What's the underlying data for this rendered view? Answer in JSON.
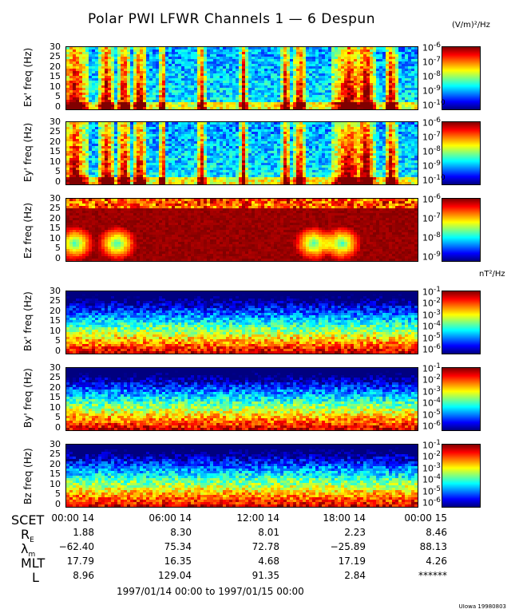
{
  "header": {
    "title": "Polar PWI LFWR Channels 1 — 6 Despun",
    "unit_e": "(V/m)²/Hz",
    "unit_b": "nT²/Hz"
  },
  "chart_data": {
    "type": "heatmap",
    "y_ticks": [
      "30",
      "25",
      "20",
      "15",
      "10",
      "5",
      "0"
    ],
    "ylim": [
      0,
      30
    ],
    "panels": [
      {
        "ylabel": "Ex' freq (Hz)",
        "cbar_ticks": [
          "10^-6",
          "10^-7",
          "10^-8",
          "10^-9",
          "10^-10"
        ],
        "kind": "e_sparse"
      },
      {
        "ylabel": "Ey' freq (Hz)",
        "cbar_ticks": [
          "10^-6",
          "10^-7",
          "10^-8",
          "10^-9",
          "10^-10"
        ],
        "kind": "e_sparse"
      },
      {
        "ylabel": "Ez freq (Hz)",
        "cbar_ticks": [
          "10^-6",
          "10^-7",
          "10^-8",
          "10^-9"
        ],
        "kind": "e_full"
      },
      {
        "ylabel": "Bx' freq (Hz)",
        "cbar_ticks": [
          "10^-1",
          "10^-2",
          "10^-3",
          "10^-4",
          "10^-5",
          "10^-6"
        ],
        "kind": "b"
      },
      {
        "ylabel": "By' freq (Hz)",
        "cbar_ticks": [
          "10^-1",
          "10^-2",
          "10^-3",
          "10^-4",
          "10^-5",
          "10^-6"
        ],
        "kind": "b"
      },
      {
        "ylabel": "Bz freq (Hz)",
        "cbar_ticks": [
          "10^-1",
          "10^-2",
          "10^-3",
          "10^-4",
          "10^-5",
          "10^-6"
        ],
        "kind": "b"
      }
    ]
  },
  "table": {
    "labels": [
      "SCET",
      "RE",
      "λm",
      "MLT",
      "L"
    ],
    "columns": [
      [
        "00:00 14",
        "1.88",
        "−62.40",
        "17.79",
        "8.96"
      ],
      [
        "06:00 14",
        "8.30",
        "75.34",
        "16.35",
        "129.04"
      ],
      [
        "12:00 14",
        "8.01",
        "72.78",
        "4.68",
        "91.35"
      ],
      [
        "18:00 14",
        "2.23",
        "−25.89",
        "17.19",
        "2.84"
      ],
      [
        "00:00 15",
        "8.46",
        "88.13",
        "4.26",
        "******"
      ]
    ]
  },
  "footer": {
    "range": "1997/01/14 00:00 to 1997/01/15 00:00",
    "credit": "UIowa 19980803"
  }
}
